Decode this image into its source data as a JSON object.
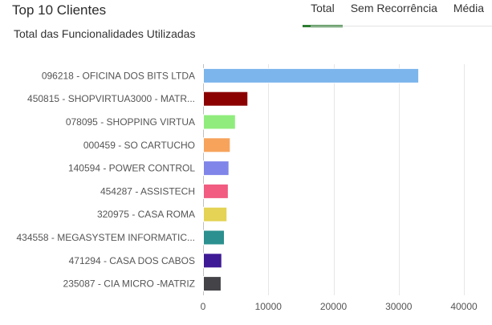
{
  "header": {
    "title": "Top 10 Clientes",
    "tabs": [
      {
        "label": "Total",
        "active": true
      },
      {
        "label": "Sem Recorrência",
        "active": false
      },
      {
        "label": "Média",
        "active": false
      }
    ],
    "accent_color": "#2e7d32"
  },
  "chart_data": {
    "type": "bar",
    "orientation": "horizontal",
    "title": "Total das Funcionalidades Utilizadas",
    "xlabel": "",
    "ylabel": "",
    "xlim": [
      0,
      40000
    ],
    "x_ticks": [
      "0",
      "10000",
      "20000",
      "30000",
      "40000"
    ],
    "grid": true,
    "categories": [
      "096218 - OFICINA DOS BITS LTDA",
      "450815 - SHOPVIRTUA3000 - MATR...",
      "078095 - SHOPPING VIRTUA",
      "000459 - SO CARTUCHO",
      "140594 - POWER CONTROL",
      "454287 - ASSISTECH",
      "320975 - CASA ROMA",
      "434558 - MEGASYSTEM INFORMATIC...",
      "471294 - CASA DOS CABOS",
      "235087 - CIA MICRO -MATRIZ"
    ],
    "values": [
      33000,
      6800,
      4900,
      4100,
      3900,
      3800,
      3600,
      3200,
      2800,
      2700
    ],
    "colors": [
      "#7cb5ec",
      "#8b0000",
      "#90ed7d",
      "#f7a35c",
      "#8085e9",
      "#f15c80",
      "#e4d354",
      "#2b908f",
      "#3f1a96",
      "#434348"
    ]
  }
}
